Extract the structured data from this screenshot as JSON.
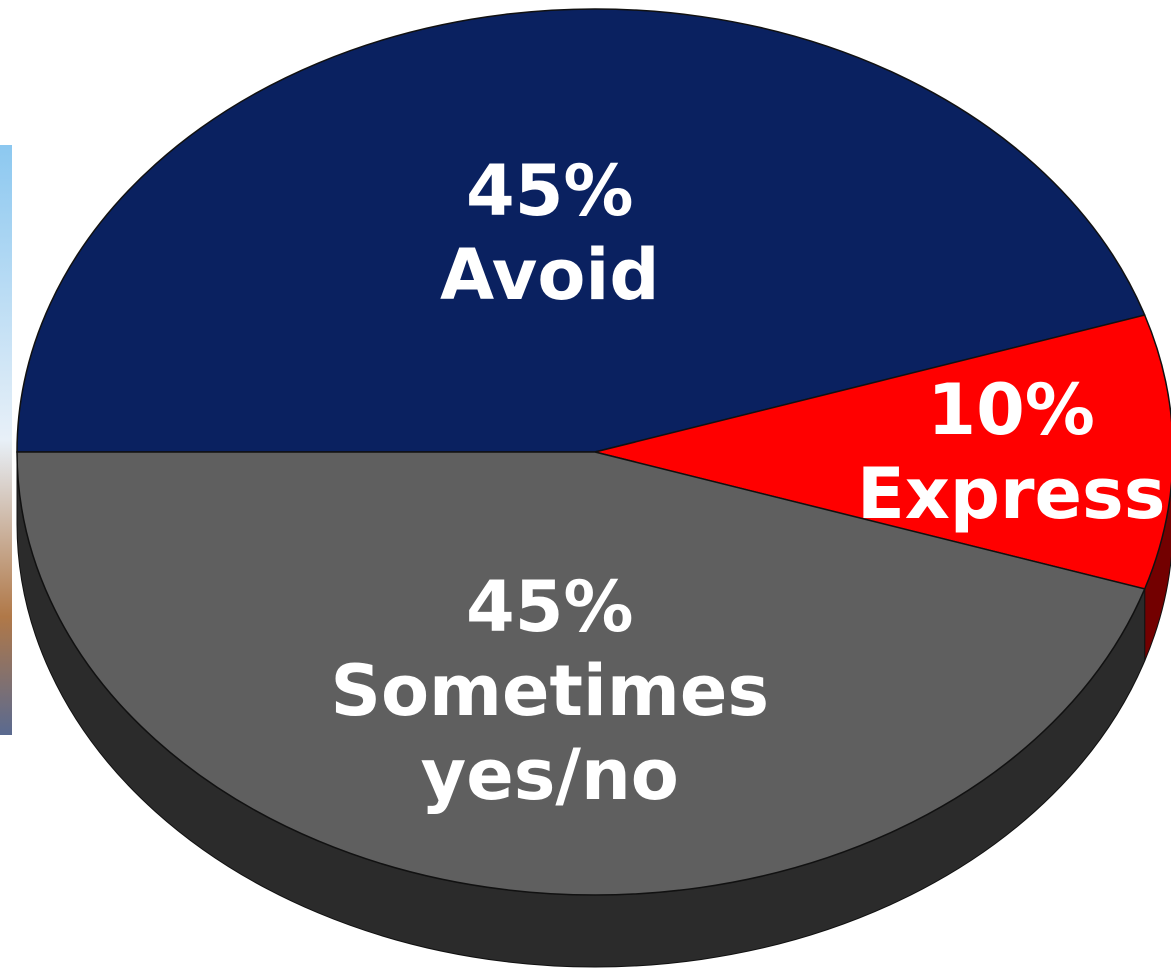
{
  "chart_data": {
    "type": "pie",
    "categories": [
      "Avoid",
      "Express",
      "Sometimes yes/no"
    ],
    "values": [
      45,
      10,
      45
    ],
    "value_labels": [
      "45%",
      "10%",
      "45%"
    ],
    "colors": [
      "#0a2160",
      "#ff0000",
      "#5f5f5f"
    ]
  }
}
